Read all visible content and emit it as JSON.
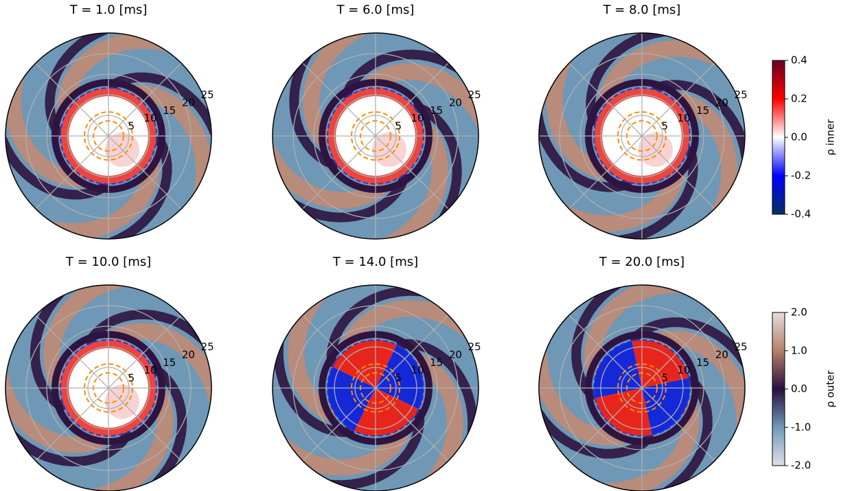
{
  "chart_data": [
    {
      "type": "polar",
      "title": "T = 1.0 [ms]",
      "rlim": [
        0,
        25
      ],
      "rticks": [
        5,
        10,
        15,
        20,
        25
      ]
    },
    {
      "type": "polar",
      "title": "T = 6.0 [ms]",
      "rlim": [
        0,
        25
      ],
      "rticks": [
        5,
        10,
        15,
        20,
        25
      ]
    },
    {
      "type": "polar",
      "title": "T = 8.0 [ms]",
      "rlim": [
        0,
        25
      ],
      "rticks": [
        5,
        10,
        15,
        20,
        25
      ]
    },
    {
      "type": "polar",
      "title": "T = 10.0 [ms]",
      "rlim": [
        0,
        25
      ],
      "rticks": [
        5,
        10,
        15,
        20,
        25
      ]
    },
    {
      "type": "polar",
      "title": "T = 14.0 [ms]",
      "rlim": [
        0,
        25
      ],
      "rticks": [
        5,
        10,
        15,
        20,
        25
      ]
    },
    {
      "type": "polar",
      "title": "T = 20.0 [ms]",
      "rlim": [
        0,
        25
      ],
      "rticks": [
        5,
        10,
        15,
        20,
        25
      ]
    },
    {
      "type": "colorbar",
      "label": "ρ inner",
      "ylim": [
        -0.4,
        0.4
      ],
      "colors": [
        "#053061",
        "#0000ff",
        "#ffffff",
        "#ff0000",
        "#67001f"
      ],
      "yticks": [
        0.4,
        0.2,
        {
          "value": 0,
          "label": "0.0"
        },
        -0.2,
        -0.4
      ]
    },
    {
      "type": "colorbar",
      "label": "ρ outer",
      "ylim": [
        -2,
        2
      ],
      "colors": [
        "#e2dde6",
        "#6f9ab8",
        "#2a0f3e",
        "#b5806a",
        "#e8dcdc"
      ],
      "yticks": [
        {
          "value": 2,
          "label": "2.0"
        },
        {
          "value": 1,
          "label": "1.0"
        },
        {
          "value": 0,
          "label": "0.0"
        },
        {
          "value": -1,
          "label": "-1.0"
        },
        {
          "value": -2,
          "label": "-2.0"
        }
      ]
    }
  ]
}
